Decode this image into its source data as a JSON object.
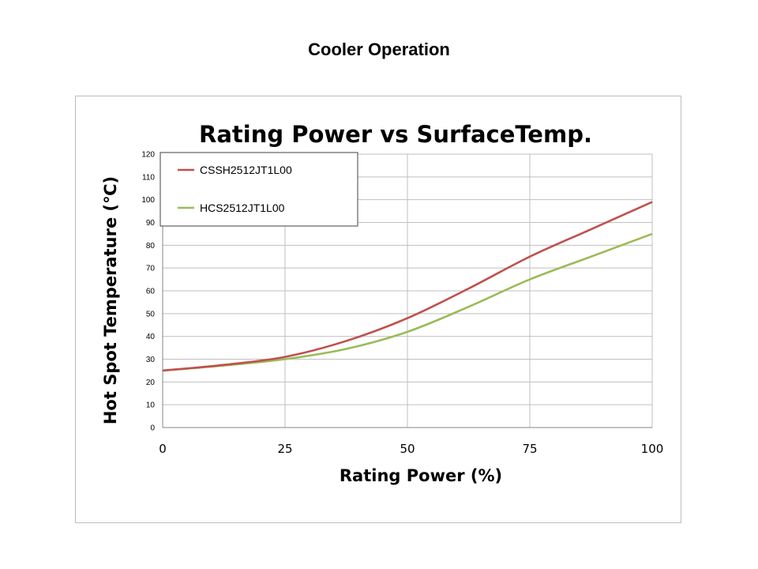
{
  "slide": {
    "title": "Cooler Operation"
  },
  "colors": {
    "series1": "#c0504d",
    "series2": "#9bbb59",
    "grid": "#bfbfbf",
    "axis": "#868686"
  },
  "chart_data": {
    "type": "line",
    "title": "Rating Power vs SurfaceTemp.",
    "xlabel": "Rating Power (%)",
    "ylabel": "Hot Spot Temperature (℃)",
    "xlim": [
      0,
      100
    ],
    "ylim": [
      0,
      120
    ],
    "xticks": [
      "0",
      "25",
      "50",
      "75",
      "100"
    ],
    "xtick_values": [
      0,
      25,
      50,
      75,
      100
    ],
    "yticks": [
      "0",
      "10",
      "20",
      "30",
      "40",
      "50",
      "60",
      "70",
      "80",
      "90",
      "100",
      "110",
      "120"
    ],
    "ytick_values": [
      0,
      10,
      20,
      30,
      40,
      50,
      60,
      70,
      80,
      90,
      100,
      110,
      120
    ],
    "grid": true,
    "legend_position": "top-left",
    "x": [
      0,
      12.5,
      25,
      37.5,
      50,
      62.5,
      75,
      87.5,
      100
    ],
    "series": [
      {
        "name": "CSSH2512JT1L00",
        "values": [
          25,
          27.5,
          31,
          38,
          48,
          61,
          75,
          87,
          99
        ]
      },
      {
        "name": "HCS2512JT1L00",
        "values": [
          25,
          27.2,
          30,
          34.5,
          42,
          53,
          65,
          75,
          85
        ]
      }
    ]
  }
}
